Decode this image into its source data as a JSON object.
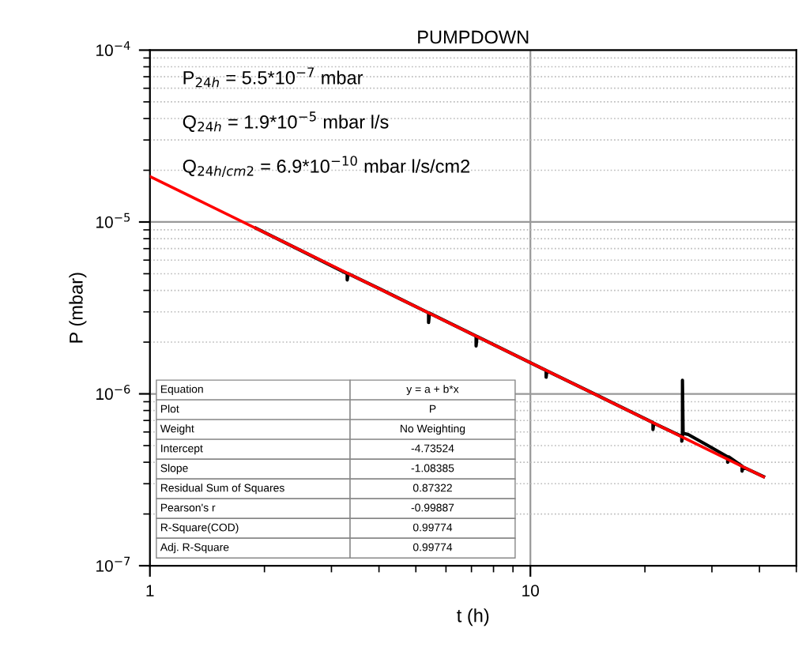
{
  "chart_data": {
    "type": "line",
    "title": "PUMPDOWN",
    "xlabel": "t (h)",
    "ylabel": "P (mbar)",
    "log": "xy",
    "xlim": [
      1,
      50
    ],
    "ylim": [
      1e-07,
      0.0001
    ],
    "xticks": [
      1,
      10
    ],
    "yticks": [
      {
        "value": 1e-07,
        "label": "10$^{−7}$"
      },
      {
        "value": 1e-06,
        "label": "10$^{−6}$"
      },
      {
        "value": 1e-05,
        "label": "10$^{−5}$"
      },
      {
        "value": 0.0001,
        "label": "10$^{−4}$"
      }
    ],
    "grid": true,
    "marker": "none",
    "line_style": "solid",
    "series": [
      {
        "color": "#000000",
        "x": [
          1.9,
          2.5,
          3.3,
          3.3,
          3.32,
          4,
          5.4,
          5.4,
          5.43,
          7.2,
          7.2,
          7.24,
          11,
          11,
          11.05,
          15,
          21,
          21,
          21.1,
          24,
          25,
          25,
          25.1,
          25.1,
          25.2,
          26,
          29.3,
          33,
          33,
          33.2,
          36,
          36,
          36.2,
          41
        ],
        "values": [
          9.2e-06,
          6.8e-06,
          5e-06,
          4.6e-06,
          5e-06,
          4.1e-06,
          2.96e-06,
          2.6e-06,
          2.95e-06,
          2.17e-06,
          1.9e-06,
          2.16e-06,
          1.37e-06,
          1.25e-06,
          1.36e-06,
          9.8e-07,
          6.8e-07,
          6.2e-07,
          6.75e-07,
          5.9e-07,
          5.65e-07,
          5.3e-07,
          5.6e-07,
          1.2e-06,
          5.9e-07,
          5.8e-07,
          5e-07,
          4.3e-07,
          4e-07,
          4.3e-07,
          3.8e-07,
          3.55e-07,
          3.75e-07,
          3.3e-07
        ]
      },
      {
        "color": "#ff0000",
        "x": [
          1,
          41
        ],
        "values": [
          1.84e-05,
          3.29e-07
        ]
      }
    ],
    "annotations": [
      "P$_{24h}$ = 5.5*10$^{−7}$ mbar",
      "Q$_{24h}$ = 1.9*10$^{−5}$ mbar l/s",
      "Q$_{24h/cm2}$ = 6.9*10$^{−10}$ mbar l/s/cm2",
      "Equation",
      "y = a + b*x",
      "Plot",
      "P",
      "Weight",
      "No Weighting",
      "Intercept",
      "-4.73524",
      "Slope",
      "-1.08385",
      "Residual Sum of Squares",
      "0.87322",
      "Pearson's r",
      "-0.99887",
      "R-Square(COD)",
      "0.99774",
      "Adj. R-Square",
      "0.99774"
    ]
  }
}
